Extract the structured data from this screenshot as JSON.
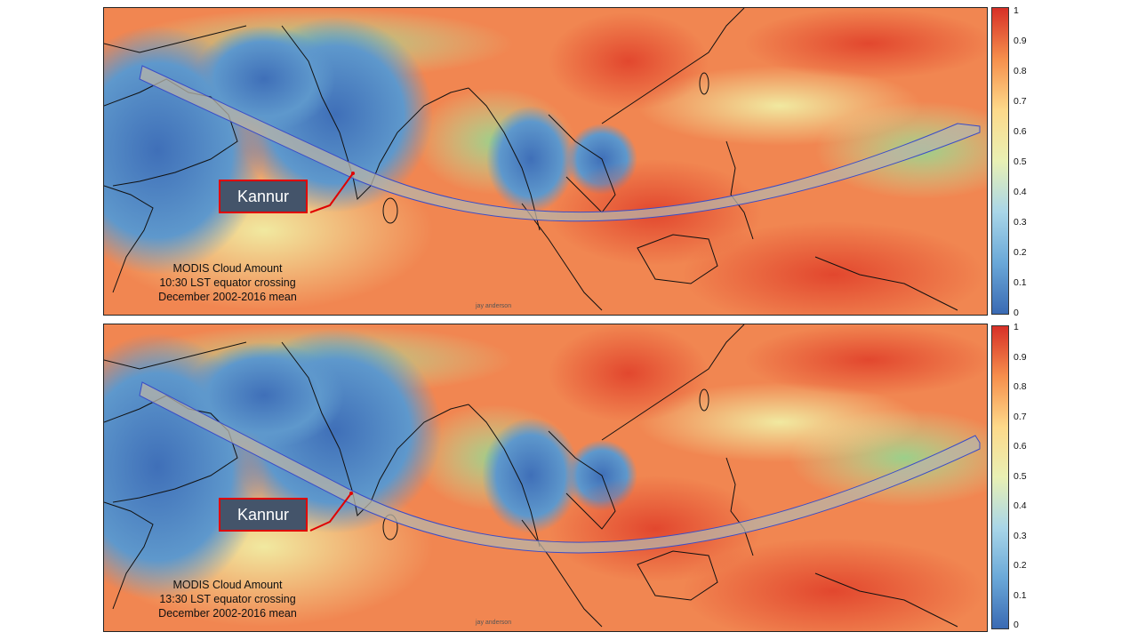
{
  "panels": [
    {
      "caption": [
        "MODIS Cloud Amount",
        "10:30 LST equator crossing",
        "December 2002-2016 mean"
      ],
      "callout_label": "Kannur",
      "credit": "jay anderson"
    },
    {
      "caption": [
        "MODIS Cloud Amount",
        "13:30 LST equator crossing",
        "December 2002-2016 mean"
      ],
      "callout_label": "Kannur",
      "credit": "jay anderson"
    }
  ],
  "colorbar": {
    "ticks": [
      "1",
      "0.9",
      "0.8",
      "0.7",
      "0.6",
      "0.5",
      "0.4",
      "0.3",
      "0.2",
      "0.1",
      "0"
    ],
    "min": 0,
    "max": 1,
    "colors": [
      "#3a6ab3",
      "#6aa8d8",
      "#a9d6e8",
      "#e9f0b4",
      "#fdd98a",
      "#f68f4c",
      "#d73027"
    ]
  },
  "track": {
    "fill": "#b8b4a8",
    "stroke": "#3a4cc8"
  },
  "callout": {
    "fill": "#44546a",
    "border": "#e00000"
  }
}
